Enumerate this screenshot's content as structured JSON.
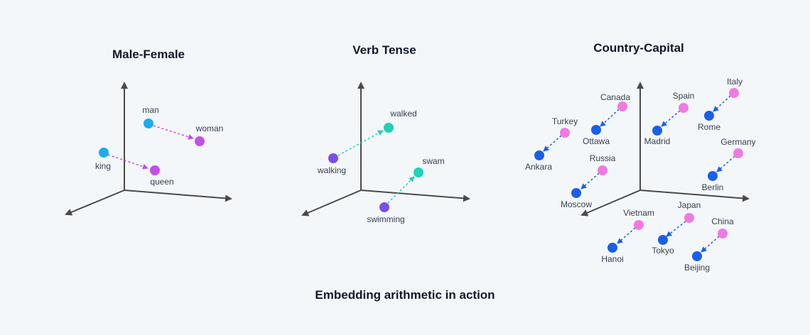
{
  "footer": "Embedding arithmetic in action",
  "colors": {
    "axis": "#4a4a4a",
    "male": "#1aaeea",
    "female": "#c44ee6",
    "past_tense": "#1fd1b8",
    "present_participle": "#7a4fe6",
    "country": "#f07ae2",
    "capital": "#1a5fea"
  },
  "panels": [
    {
      "title": "Male-Female",
      "words": [
        "man",
        "woman",
        "king",
        "queen"
      ]
    },
    {
      "title": "Verb Tense",
      "words": [
        "walked",
        "walking",
        "swam",
        "swimming"
      ]
    },
    {
      "title": "Country-Capital",
      "countries": [
        "Canada",
        "Spain",
        "Italy",
        "Turkey",
        "Germany",
        "Russia",
        "Vietnam",
        "Japan",
        "China"
      ],
      "capitals": [
        "Ottawa",
        "Madrid",
        "Rome",
        "Ankara",
        "Berlin",
        "Moscow",
        "Hanoi",
        "Tokyo",
        "Beijing"
      ]
    }
  ]
}
